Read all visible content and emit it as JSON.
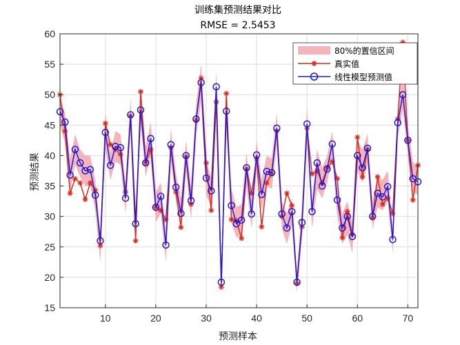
{
  "chart_data": {
    "type": "line",
    "title": "训练集预测结果对比",
    "subtitle": "RMSE = 2.5453",
    "xlabel": "预测样本",
    "ylabel": "预测结果",
    "xlim": [
      1,
      72
    ],
    "ylim": [
      15,
      60
    ],
    "xticks": [
      10,
      20,
      30,
      40,
      50,
      60,
      70
    ],
    "yticks": [
      15,
      20,
      25,
      30,
      35,
      40,
      45,
      50,
      55,
      60
    ],
    "grid": true,
    "legend_position": "top-right",
    "legend": [
      "80%的置信区间",
      "真实值",
      "线性模型预测值"
    ],
    "x": [
      1,
      2,
      3,
      4,
      5,
      6,
      7,
      8,
      9,
      10,
      11,
      12,
      13,
      14,
      15,
      16,
      17,
      18,
      19,
      20,
      21,
      22,
      23,
      24,
      25,
      26,
      27,
      28,
      29,
      30,
      31,
      32,
      33,
      34,
      35,
      36,
      37,
      38,
      39,
      40,
      41,
      42,
      43,
      44,
      45,
      46,
      47,
      48,
      49,
      50,
      51,
      52,
      53,
      54,
      55,
      56,
      57,
      58,
      59,
      60,
      61,
      62,
      63,
      64,
      65,
      66,
      67,
      68,
      69,
      70,
      71,
      72
    ],
    "series": [
      {
        "name": "80%的置信区间",
        "kind": "band",
        "color": "#f4b4b9",
        "lower": [
          45.0,
          42.0,
          34.0,
          38.5,
          36.5,
          35.0,
          35.0,
          31.0,
          22.5,
          41.0,
          36.0,
          39.0,
          38.5,
          30.5,
          44.0,
          26.5,
          45.0,
          36.5,
          40.0,
          29.0,
          30.5,
          22.5,
          39.0,
          32.5,
          28.0,
          37.5,
          29.5,
          43.0,
          49.0,
          33.5,
          31.5,
          48.5,
          17.0,
          44.5,
          29.0,
          26.5,
          27.0,
          35.0,
          28.0,
          37.5,
          31.0,
          35.0,
          34.5,
          41.5,
          28.0,
          25.5,
          28.5,
          17.5,
          26.5,
          42.5,
          28.0,
          34.5,
          33.0,
          35.5,
          39.5,
          30.0,
          25.5,
          27.0,
          24.0,
          37.5,
          35.5,
          38.5,
          28.0,
          31.5,
          31.0,
          32.5,
          24.0,
          43.0,
          47.5,
          40.0,
          34.0,
          33.5
        ],
        "upper": [
          49.5,
          47.0,
          39.5,
          43.5,
          41.0,
          40.0,
          40.0,
          36.0,
          27.5,
          47.0,
          40.5,
          44.0,
          43.5,
          35.5,
          49.5,
          31.0,
          50.5,
          41.5,
          45.5,
          34.0,
          35.5,
          28.0,
          44.5,
          37.0,
          33.0,
          42.5,
          35.0,
          48.5,
          55.0,
          39.0,
          36.5,
          54.0,
          21.5,
          50.0,
          34.5,
          31.5,
          32.0,
          40.5,
          33.0,
          42.5,
          36.0,
          40.0,
          39.5,
          47.0,
          32.5,
          30.5,
          33.0,
          21.0,
          31.5,
          48.0,
          33.0,
          41.0,
          38.0,
          40.0,
          44.0,
          34.5,
          30.5,
          32.5,
          29.0,
          42.5,
          41.0,
          43.5,
          32.5,
          36.5,
          36.0,
          37.5,
          28.5,
          47.5,
          53.0,
          45.0,
          39.0,
          38.0
        ]
      },
      {
        "name": "真实值",
        "kind": "line-star",
        "color": "#d9291f",
        "values": [
          50.0,
          44.0,
          33.8,
          36.2,
          35.5,
          32.8,
          35.5,
          34.3,
          25.2,
          45.3,
          41.8,
          41.0,
          40.2,
          34.0,
          46.5,
          26.0,
          50.5,
          38.8,
          41.0,
          31.5,
          31.0,
          29.5,
          41.3,
          34.0,
          28.2,
          39.8,
          32.0,
          45.8,
          52.7,
          38.8,
          31.0,
          48.8,
          18.4,
          50.2,
          29.5,
          29.3,
          26.4,
          37.8,
          33.8,
          39.5,
          28.3,
          35.5,
          37.0,
          44.0,
          30.0,
          33.8,
          31.8,
          19.0,
          28.3,
          44.5,
          37.0,
          37.5,
          35.5,
          38.0,
          39.0,
          36.2,
          26.5,
          30.8,
          27.0,
          43.0,
          36.5,
          41.0,
          29.8,
          36.5,
          32.0,
          33.0,
          30.5,
          46.0,
          58.6,
          42.5,
          32.7,
          38.4
        ]
      },
      {
        "name": "线性模型预测值",
        "kind": "line-circle",
        "color": "#1a1adb",
        "values": [
          47.2,
          45.5,
          36.8,
          41.0,
          38.8,
          37.5,
          37.7,
          33.5,
          26.0,
          43.8,
          38.4,
          41.5,
          41.3,
          33.0,
          46.7,
          28.8,
          47.5,
          38.8,
          42.8,
          31.5,
          33.3,
          25.3,
          41.8,
          34.8,
          30.5,
          40.0,
          32.6,
          46.0,
          52.0,
          36.3,
          34.2,
          51.3,
          19.2,
          47.3,
          31.8,
          28.8,
          29.4,
          38.0,
          30.4,
          40.1,
          33.6,
          37.4,
          37.2,
          44.5,
          30.4,
          28.1,
          30.8,
          19.2,
          29.0,
          45.2,
          30.8,
          38.8,
          35.0,
          37.8,
          41.9,
          32.7,
          28.1,
          30.0,
          26.7,
          40.0,
          38.0,
          41.2,
          30.0,
          33.8,
          33.2,
          34.9,
          26.2,
          45.4,
          50.0,
          42.5,
          36.2,
          35.7
        ]
      }
    ]
  }
}
